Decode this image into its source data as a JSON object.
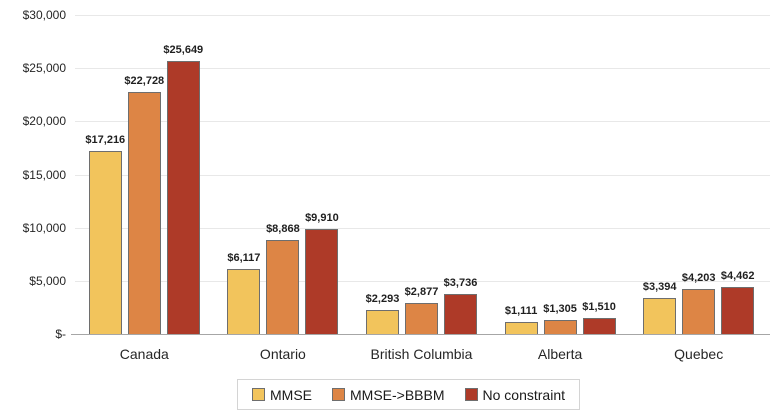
{
  "chart_data": {
    "type": "bar",
    "title": "",
    "xlabel": "",
    "ylabel": "",
    "categories": [
      "Canada",
      "Ontario",
      "British Columbia",
      "Alberta",
      "Quebec"
    ],
    "series": [
      {
        "name": "MMSE",
        "color": "#F2C45C",
        "values": [
          17216,
          6117,
          2293,
          1111,
          3394
        ],
        "labels": [
          "$17,216",
          "$6,117",
          "$2,293",
          "$1,111",
          "$3,394"
        ]
      },
      {
        "name": "MMSE->BBBM",
        "color": "#DD8545",
        "values": [
          22728,
          8868,
          2877,
          1305,
          4203
        ],
        "labels": [
          "$22,728",
          "$8,868",
          "$2,877",
          "$1,305",
          "$4,203"
        ]
      },
      {
        "name": "No constraint",
        "color": "#AE3A28",
        "values": [
          25649,
          9910,
          3736,
          1510,
          4462
        ],
        "labels": [
          "$25,649",
          "$9,910",
          "$3,736",
          "$1,510",
          "$4,462"
        ]
      }
    ],
    "ylim": [
      0,
      30000
    ],
    "y_ticks": [
      {
        "value": 0,
        "label": "$-"
      },
      {
        "value": 5000,
        "label": "$5,000"
      },
      {
        "value": 10000,
        "label": "$10,000"
      },
      {
        "value": 15000,
        "label": "$15,000"
      },
      {
        "value": 20000,
        "label": "$20,000"
      },
      {
        "value": 25000,
        "label": "$25,000"
      },
      {
        "value": 30000,
        "label": "$30,000"
      }
    ],
    "grid": true,
    "legend_position": "bottom"
  },
  "colors": {
    "gridline": "#E8E8E8",
    "axis_line": "#A6A6A6",
    "bar_border": "#6E6E6E",
    "value_label_text": "#1f1f1f",
    "tick_label_text": "#262626",
    "legend_border": "#D4D4D4",
    "background": "#FFFFFF"
  }
}
